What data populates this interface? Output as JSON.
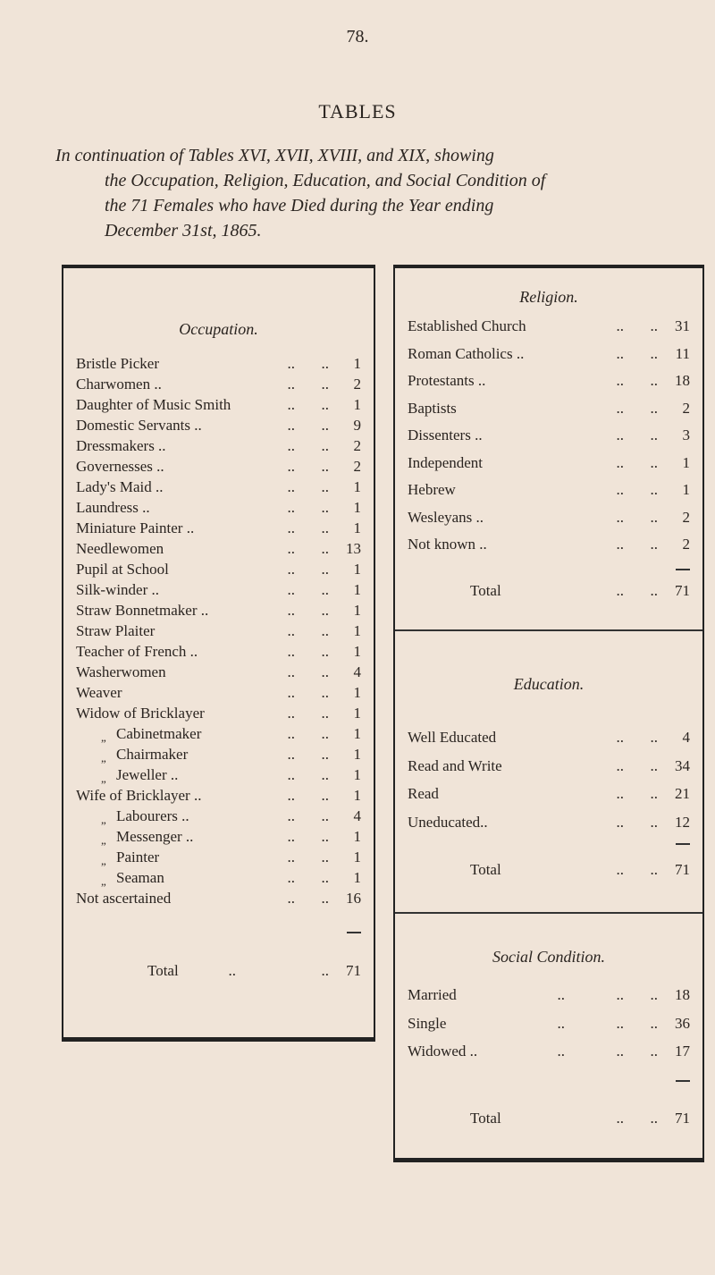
{
  "page_number": "78.",
  "title": "TABLES",
  "subtitle_lines": [
    "In continuation of Tables XVI, XVII, XVIII, and XIX, showing",
    "the Occupation, Religion, Education, and Social Condition of",
    "the 71 Females who have Died during the Year ending",
    "December 31st, 1865."
  ],
  "occupation": {
    "title": "Occupation.",
    "rows": [
      {
        "label": "Bristle Picker",
        "value": "1"
      },
      {
        "label": "Charwomen ..",
        "value": "2"
      },
      {
        "label": "Daughter of Music Smith",
        "value": "1"
      },
      {
        "label": "Domestic Servants ..",
        "value": "9"
      },
      {
        "label": "Dressmakers ..",
        "value": "2"
      },
      {
        "label": "Governesses ..",
        "value": "2"
      },
      {
        "label": "Lady's Maid ..",
        "value": "1"
      },
      {
        "label": "Laundress ..",
        "value": "1"
      },
      {
        "label": "Miniature Painter ..",
        "value": "1"
      },
      {
        "label": "Needlewomen",
        "value": "13"
      },
      {
        "label": "Pupil at School",
        "value": "1"
      },
      {
        "label": "Silk-winder ..",
        "value": "1"
      },
      {
        "label": "Straw Bonnetmaker ..",
        "value": "1"
      },
      {
        "label": "Straw Plaiter",
        "value": "1"
      },
      {
        "label": "Teacher of French ..",
        "value": "1"
      },
      {
        "label": "Washerwomen",
        "value": "4"
      },
      {
        "label": "Weaver",
        "value": "1"
      },
      {
        "label": "Widow of Bricklayer",
        "value": "1"
      },
      {
        "label": "Cabinetmaker",
        "value": "1",
        "ditto": "„"
      },
      {
        "label": "Chairmaker",
        "value": "1",
        "ditto": "„"
      },
      {
        "label": "Jeweller ..",
        "value": "1",
        "ditto": "„"
      },
      {
        "label": "Wife of Bricklayer ..",
        "value": "1"
      },
      {
        "label": "Labourers ..",
        "value": "4",
        "ditto": "„"
      },
      {
        "label": "Messenger ..",
        "value": "1",
        "ditto": "„"
      },
      {
        "label": "Painter",
        "value": "1",
        "ditto": "„"
      },
      {
        "label": "Seaman",
        "value": "1",
        "ditto": "„"
      },
      {
        "label": "Not ascertained",
        "value": "16"
      }
    ],
    "total_label": "Total",
    "total_value": "71"
  },
  "religion": {
    "title": "Religion.",
    "rows": [
      {
        "label": "Established Church",
        "value": "31"
      },
      {
        "label": "Roman Catholics ..",
        "value": "11"
      },
      {
        "label": "Protestants ..",
        "value": "18"
      },
      {
        "label": "Baptists",
        "value": "2"
      },
      {
        "label": "Dissenters ..",
        "value": "3"
      },
      {
        "label": "Independent",
        "value": "1"
      },
      {
        "label": "Hebrew",
        "value": "1"
      },
      {
        "label": "Wesleyans ..",
        "value": "2"
      },
      {
        "label": "Not known ..",
        "value": "2"
      }
    ],
    "total_label": "Total",
    "total_value": "71"
  },
  "education": {
    "title": "Education.",
    "rows": [
      {
        "label": "Well Educated",
        "value": "4"
      },
      {
        "label": "Read and Write",
        "value": "34"
      },
      {
        "label": "Read",
        "value": "21"
      },
      {
        "label": "Uneducated..",
        "value": "12"
      }
    ],
    "total_label": "Total",
    "total_value": "71"
  },
  "social_condition": {
    "title": "Social Condition.",
    "rows": [
      {
        "label": "Married",
        "value": "18"
      },
      {
        "label": "Single",
        "value": "36"
      },
      {
        "label": "Widowed ..",
        "value": "17"
      }
    ],
    "total_label": "Total",
    "total_value": "71"
  },
  "leader_dots": ".."
}
